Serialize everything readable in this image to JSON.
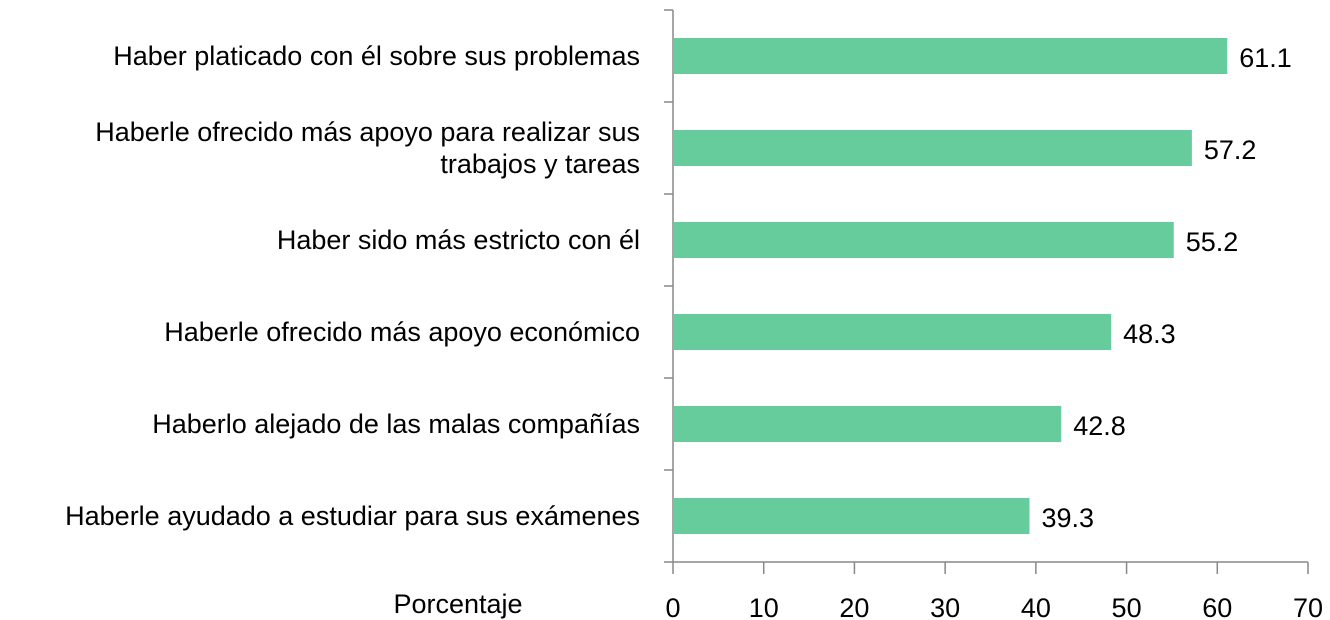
{
  "chart_data": {
    "type": "bar",
    "orientation": "horizontal",
    "categories": [
      "Haber platicado con él sobre sus problemas",
      "Haberle ofrecido más apoyo para realizar sus trabajos y tareas",
      "Haber sido más estricto con él",
      "Haberle ofrecido más apoyo económico",
      "Haberlo alejado de las malas compañías",
      "Haberle ayudado a estudiar para sus exámenes"
    ],
    "values": [
      61.1,
      57.2,
      55.2,
      48.3,
      42.8,
      39.3
    ],
    "color": "#66cc9c",
    "xlabel": "Porcentaje",
    "xlim": [
      0,
      70
    ],
    "xticks": [
      0,
      10,
      20,
      30,
      40,
      50,
      60,
      70
    ]
  }
}
